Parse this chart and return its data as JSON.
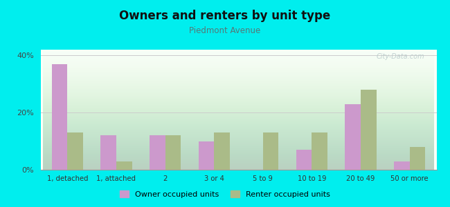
{
  "title": "Owners and renters by unit type",
  "subtitle": "Piedmont Avenue",
  "categories": [
    "1, detached",
    "1, attached",
    "2",
    "3 or 4",
    "5 to 9",
    "10 to 19",
    "20 to 49",
    "50 or more"
  ],
  "owner_values": [
    37,
    12,
    12,
    10,
    0,
    7,
    23,
    3
  ],
  "renter_values": [
    13,
    3,
    12,
    13,
    13,
    13,
    28,
    8
  ],
  "owner_color": "#cc99cc",
  "renter_color": "#aabb88",
  "background_color": "#00eeee",
  "ylim": [
    0,
    42
  ],
  "yticks": [
    0,
    20,
    40
  ],
  "ytick_labels": [
    "0%",
    "20%",
    "40%"
  ],
  "legend_owner": "Owner occupied units",
  "legend_renter": "Renter occupied units",
  "bar_width": 0.32
}
